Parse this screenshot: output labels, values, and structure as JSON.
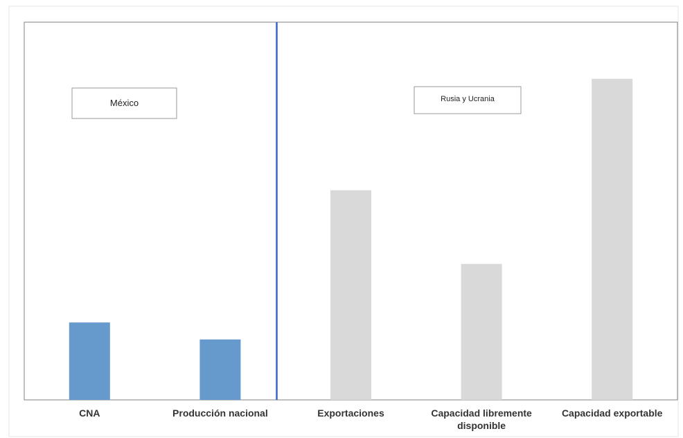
{
  "chart_data": {
    "type": "bar",
    "categories": [
      "CNA",
      "Producción nacional",
      "Exportaciones",
      "Capacidad libremente disponible",
      "Capacidad exportable"
    ],
    "values": [
      20.5,
      16,
      55.5,
      36,
      85
    ],
    "ylim": [
      0,
      100
    ],
    "grid": false,
    "legend": "none",
    "annotations": [
      "México",
      "Rusia y Ucrania"
    ],
    "colors": {
      "mexico": "#6699cc",
      "rusia_ucrania": "#d9d9d9",
      "divider": "#3366cc",
      "axis": "#808080"
    }
  }
}
